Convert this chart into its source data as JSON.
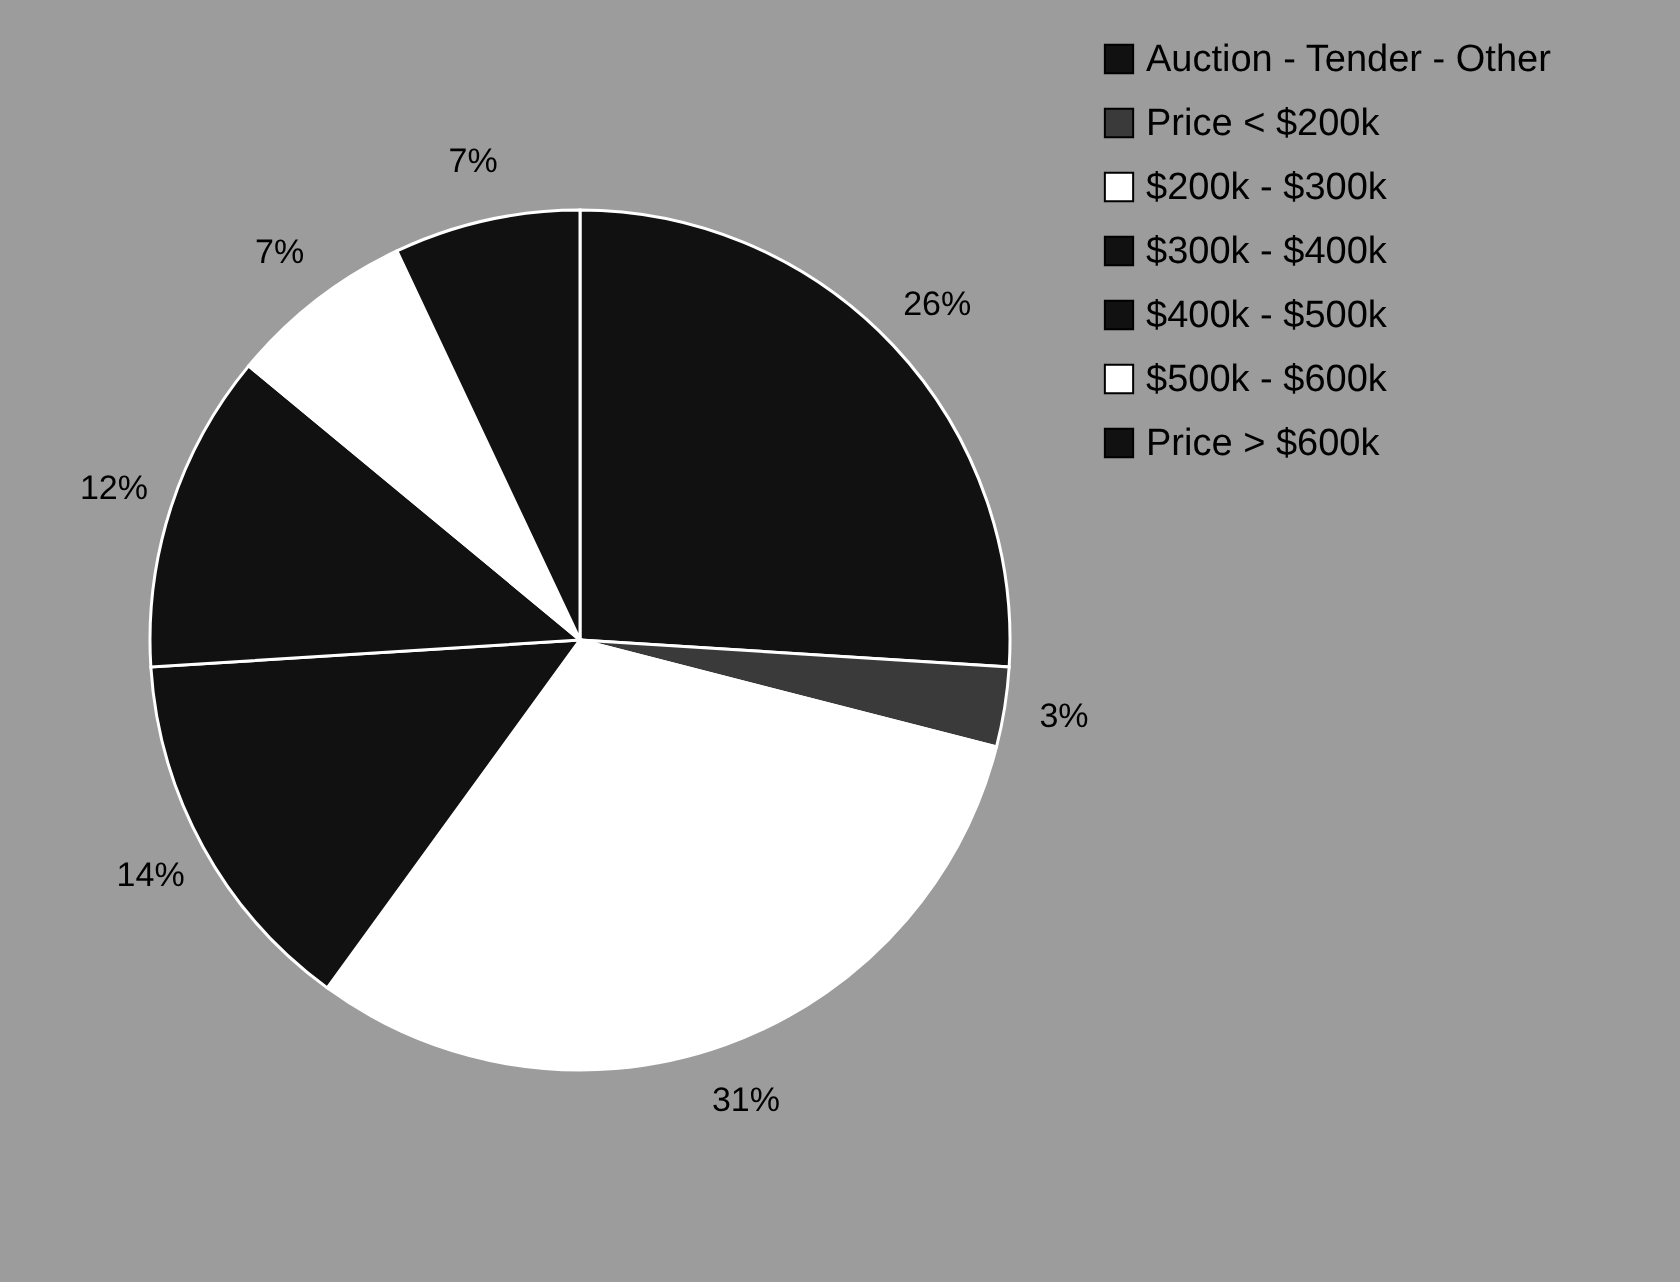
{
  "chart_data": {
    "type": "pie",
    "categories": [
      "Auction - Tender - Other",
      "Price < $200k",
      "$200k - $300k",
      "$300k - $400k",
      "$400k - $500k",
      "$500k - $600k",
      "Price > $600k"
    ],
    "values": [
      26,
      3,
      31,
      14,
      12,
      7,
      7
    ],
    "value_labels": [
      "26%",
      "3%",
      "31%",
      "14%",
      "12%",
      "7%",
      "7%"
    ],
    "colors": [
      "#111111",
      "#3a3a3a",
      "#ffffff",
      "#111111",
      "#111111",
      "#ffffff",
      "#111111"
    ],
    "legend": "right"
  }
}
